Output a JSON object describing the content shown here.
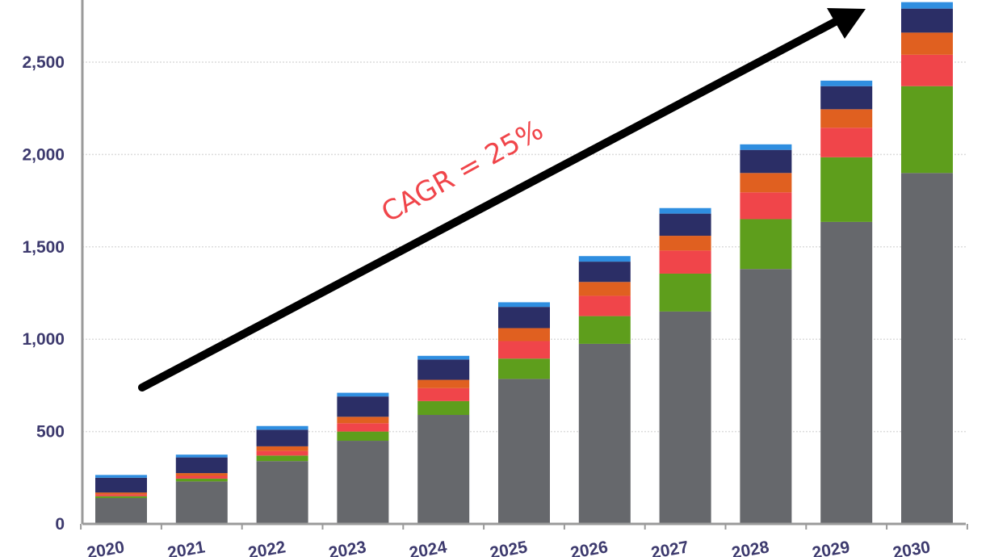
{
  "chart_data": {
    "type": "bar",
    "stacked": true,
    "categories": [
      "2020",
      "2021",
      "2022",
      "2023",
      "2024",
      "2025",
      "2026",
      "2027",
      "2028",
      "2029",
      "2030"
    ],
    "series": [
      {
        "color": "#66686c",
        "values": [
          140,
          230,
          340,
          450,
          590,
          785,
          975,
          1150,
          1380,
          1635,
          1900
        ]
      },
      {
        "color": "#5e9e1c",
        "values": [
          10,
          15,
          30,
          50,
          75,
          110,
          150,
          205,
          270,
          350,
          470
        ]
      },
      {
        "color": "#f0454a",
        "values": [
          10,
          15,
          25,
          45,
          70,
          95,
          110,
          125,
          145,
          160,
          170
        ]
      },
      {
        "color": "#e06020",
        "values": [
          10,
          15,
          25,
          35,
          45,
          70,
          75,
          80,
          105,
          100,
          120
        ]
      },
      {
        "color": "#2b2e66",
        "values": [
          80,
          85,
          90,
          110,
          110,
          115,
          110,
          120,
          125,
          125,
          130
        ]
      },
      {
        "color": "#2f8ee0",
        "values": [
          15,
          15,
          20,
          20,
          20,
          25,
          30,
          30,
          30,
          30,
          35
        ]
      }
    ],
    "ylim": [
      0,
      2820
    ],
    "yticks": [
      0,
      500,
      1000,
      1500,
      2000,
      2500
    ],
    "ytick_labels": [
      "0",
      "500",
      "1,000",
      "1,500",
      "2,000",
      "2,500"
    ],
    "grid": true,
    "annotation": {
      "text": "CAGR = 25%",
      "color": "#f0454a",
      "arrow": "trend arrow from 2020 up to 2030"
    },
    "axis_color": "#9a9a9a",
    "tick_label_color": "#3d3a6e"
  }
}
